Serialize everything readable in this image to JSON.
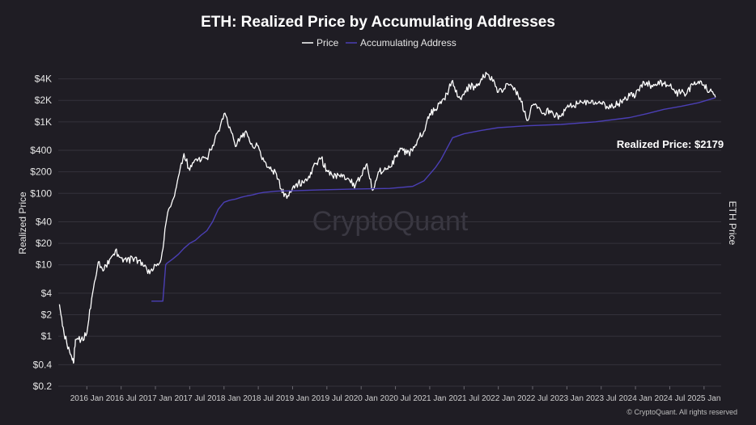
{
  "chart_data": {
    "type": "line",
    "title": "ETH: Realized Price by Accumulating Addresses",
    "ylabel": "Realized Price",
    "y2label": "ETH Price",
    "y_scale": "log",
    "grid": true,
    "legend_position": "top-center",
    "y_ticks": [
      {
        "value": 0.2,
        "label": "$0.2"
      },
      {
        "value": 0.4,
        "label": "$0.4"
      },
      {
        "value": 1,
        "label": "$1"
      },
      {
        "value": 2,
        "label": "$2"
      },
      {
        "value": 4,
        "label": "$4"
      },
      {
        "value": 10,
        "label": "$10"
      },
      {
        "value": 20,
        "label": "$20"
      },
      {
        "value": 40,
        "label": "$40"
      },
      {
        "value": 100,
        "label": "$100"
      },
      {
        "value": 200,
        "label": "$200"
      },
      {
        "value": 400,
        "label": "$400"
      },
      {
        "value": 1000,
        "label": "$1K"
      },
      {
        "value": 2000,
        "label": "$2K"
      },
      {
        "value": 4000,
        "label": "$4K"
      }
    ],
    "x_range": [
      "2015-08",
      "2025-04"
    ],
    "x_ticks": [
      {
        "date": "2016-01",
        "label": "2016 Jan"
      },
      {
        "date": "2016-07",
        "label": "2016 Jul"
      },
      {
        "date": "2017-01",
        "label": "2017 Jan"
      },
      {
        "date": "2017-07",
        "label": "2017 Jul"
      },
      {
        "date": "2018-01",
        "label": "2018 Jan"
      },
      {
        "date": "2018-07",
        "label": "2018 Jul"
      },
      {
        "date": "2019-01",
        "label": "2019 Jan"
      },
      {
        "date": "2019-07",
        "label": "2019 Jul"
      },
      {
        "date": "2020-01",
        "label": "2020 Jan"
      },
      {
        "date": "2020-07",
        "label": "2020 Jul"
      },
      {
        "date": "2021-01",
        "label": "2021 Jan"
      },
      {
        "date": "2021-07",
        "label": "2021 Jul"
      },
      {
        "date": "2022-01",
        "label": "2022 Jan"
      },
      {
        "date": "2022-07",
        "label": "2022 Jul"
      },
      {
        "date": "2023-01",
        "label": "2023 Jan"
      },
      {
        "date": "2023-07",
        "label": "2023 Jul"
      },
      {
        "date": "2024-01",
        "label": "2024 Jan"
      },
      {
        "date": "2024-07",
        "label": "2024 Jul"
      },
      {
        "date": "2025-01",
        "label": "2025 Jan"
      }
    ],
    "series": [
      {
        "name": "Price",
        "color": "#ffffff",
        "points": [
          [
            "2015-08-07",
            2.8
          ],
          [
            "2015-09",
            1.1
          ],
          [
            "2015-10",
            0.6
          ],
          [
            "2015-10-21",
            0.42
          ],
          [
            "2015-11",
            0.9
          ],
          [
            "2015-12",
            0.9
          ],
          [
            "2016-01",
            1.1
          ],
          [
            "2016-02",
            4.0
          ],
          [
            "2016-03",
            11.0
          ],
          [
            "2016-04",
            8.5
          ],
          [
            "2016-05",
            12.0
          ],
          [
            "2016-06",
            16.0
          ],
          [
            "2016-07",
            12.5
          ],
          [
            "2016-08",
            11.0
          ],
          [
            "2016-09",
            12.5
          ],
          [
            "2016-10",
            11.5
          ],
          [
            "2016-11",
            9.5
          ],
          [
            "2016-12",
            7.5
          ],
          [
            "2017-01",
            10.0
          ],
          [
            "2017-02",
            12.0
          ],
          [
            "2017-03",
            45.0
          ],
          [
            "2017-04",
            80.0
          ],
          [
            "2017-05",
            170.0
          ],
          [
            "2017-06",
            360.0
          ],
          [
            "2017-07",
            210.0
          ],
          [
            "2017-08",
            300.0
          ],
          [
            "2017-09",
            290.0
          ],
          [
            "2017-10",
            310.0
          ],
          [
            "2017-11",
            470.0
          ],
          [
            "2017-12",
            750.0
          ],
          [
            "2018-01",
            1300.0
          ],
          [
            "2018-02",
            850.0
          ],
          [
            "2018-03",
            450.0
          ],
          [
            "2018-04",
            650.0
          ],
          [
            "2018-05",
            700.0
          ],
          [
            "2018-06",
            450.0
          ],
          [
            "2018-07",
            460.0
          ],
          [
            "2018-08",
            280.0
          ],
          [
            "2018-09",
            220.0
          ],
          [
            "2018-10",
            200.0
          ],
          [
            "2018-11",
            115.0
          ],
          [
            "2018-12",
            85.0
          ],
          [
            "2019-01",
            120.0
          ],
          [
            "2019-02",
            140.0
          ],
          [
            "2019-03",
            140.0
          ],
          [
            "2019-04",
            165.0
          ],
          [
            "2019-05",
            260.0
          ],
          [
            "2019-06",
            310.0
          ],
          [
            "2019-07",
            210.0
          ],
          [
            "2019-08",
            175.0
          ],
          [
            "2019-09",
            180.0
          ],
          [
            "2019-10",
            180.0
          ],
          [
            "2019-11",
            150.0
          ],
          [
            "2019-12",
            130.0
          ],
          [
            "2020-01",
            175.0
          ],
          [
            "2020-02",
            260.0
          ],
          [
            "2020-03",
            110.0
          ],
          [
            "2020-04",
            200.0
          ],
          [
            "2020-05",
            210.0
          ],
          [
            "2020-06",
            230.0
          ],
          [
            "2020-07",
            320.0
          ],
          [
            "2020-08",
            420.0
          ],
          [
            "2020-09",
            360.0
          ],
          [
            "2020-10",
            390.0
          ],
          [
            "2020-11",
            580.0
          ],
          [
            "2020-12",
            740.0
          ],
          [
            "2021-01",
            1300.0
          ],
          [
            "2021-02",
            1500.0
          ],
          [
            "2021-03",
            1800.0
          ],
          [
            "2021-04",
            2500.0
          ],
          [
            "2021-05",
            3800.0
          ],
          [
            "2021-06",
            2200.0
          ],
          [
            "2021-07",
            2400.0
          ],
          [
            "2021-08",
            3200.0
          ],
          [
            "2021-09",
            3000.0
          ],
          [
            "2021-10",
            4000.0
          ],
          [
            "2021-11",
            4700.0
          ],
          [
            "2021-12",
            3700.0
          ],
          [
            "2022-01",
            2600.0
          ],
          [
            "2022-02",
            2900.0
          ],
          [
            "2022-03",
            3300.0
          ],
          [
            "2022-04",
            2800.0
          ],
          [
            "2022-05",
            1900.0
          ],
          [
            "2022-06",
            1050.0
          ],
          [
            "2022-07",
            1700.0
          ],
          [
            "2022-08",
            1600.0
          ],
          [
            "2022-09",
            1330.0
          ],
          [
            "2022-10",
            1450.0
          ],
          [
            "2022-11",
            1200.0
          ],
          [
            "2022-12",
            1200.0
          ],
          [
            "2023-01",
            1600.0
          ],
          [
            "2023-02",
            1650.0
          ],
          [
            "2023-03",
            1800.0
          ],
          [
            "2023-04",
            1900.0
          ],
          [
            "2023-05",
            1850.0
          ],
          [
            "2023-06",
            1900.0
          ],
          [
            "2023-07",
            1850.0
          ],
          [
            "2023-08",
            1650.0
          ],
          [
            "2023-09",
            1650.0
          ],
          [
            "2023-10",
            1800.0
          ],
          [
            "2023-11",
            2050.0
          ],
          [
            "2023-12",
            2300.0
          ],
          [
            "2024-01",
            2300.0
          ],
          [
            "2024-02",
            3300.0
          ],
          [
            "2024-03",
            3600.0
          ],
          [
            "2024-04",
            3100.0
          ],
          [
            "2024-05",
            3700.0
          ],
          [
            "2024-06",
            3400.0
          ],
          [
            "2024-07",
            3200.0
          ],
          [
            "2024-08",
            2500.0
          ],
          [
            "2024-09",
            2600.0
          ],
          [
            "2024-10",
            2500.0
          ],
          [
            "2024-11",
            3300.0
          ],
          [
            "2024-12",
            3700.0
          ],
          [
            "2025-01",
            3300.0
          ],
          [
            "2025-02",
            2700.0
          ],
          [
            "2025-03",
            2200.0
          ]
        ]
      },
      {
        "name": "Accumulating Address",
        "color": "#4b3fb5",
        "points": [
          [
            "2016-12-10",
            3.1
          ],
          [
            "2017-02-10",
            3.1
          ],
          [
            "2017-02-25",
            10.0
          ],
          [
            "2017-03",
            10.5
          ],
          [
            "2017-04",
            12.0
          ],
          [
            "2017-05",
            14.0
          ],
          [
            "2017-06",
            17.0
          ],
          [
            "2017-07",
            20.0
          ],
          [
            "2017-08",
            22.0
          ],
          [
            "2017-09",
            26.0
          ],
          [
            "2017-10",
            30.0
          ],
          [
            "2017-11",
            40.0
          ],
          [
            "2017-12",
            60.0
          ],
          [
            "2018-01",
            75.0
          ],
          [
            "2018-02",
            80.0
          ],
          [
            "2018-03",
            83.0
          ],
          [
            "2018-04",
            88.0
          ],
          [
            "2018-05",
            92.0
          ],
          [
            "2018-06",
            95.0
          ],
          [
            "2018-07",
            100.0
          ],
          [
            "2018-08",
            103.0
          ],
          [
            "2018-09",
            105.0
          ],
          [
            "2018-10",
            107.0
          ],
          [
            "2018-11",
            108.0
          ],
          [
            "2018-12",
            108.0
          ],
          [
            "2019-06",
            112.0
          ],
          [
            "2019-12",
            115.0
          ],
          [
            "2020-06",
            117.0
          ],
          [
            "2020-10",
            125.0
          ],
          [
            "2020-12",
            150.0
          ],
          [
            "2021-02",
            230.0
          ],
          [
            "2021-03",
            300.0
          ],
          [
            "2021-05",
            600.0
          ],
          [
            "2021-07",
            680.0
          ],
          [
            "2021-10",
            760.0
          ],
          [
            "2022-01",
            830.0
          ],
          [
            "2022-06",
            880.0
          ],
          [
            "2022-12",
            920.0
          ],
          [
            "2023-06",
            1000.0
          ],
          [
            "2023-12",
            1150.0
          ],
          [
            "2024-03",
            1300.0
          ],
          [
            "2024-06",
            1500.0
          ],
          [
            "2024-09",
            1650.0
          ],
          [
            "2024-12",
            1850.0
          ],
          [
            "2025-03",
            2179.0
          ]
        ]
      }
    ],
    "annotations": [
      {
        "text": "Realized Price: $2179"
      }
    ]
  },
  "watermark": "CryptoQuant",
  "footer": "© CryptoQuant. All rights reserved"
}
